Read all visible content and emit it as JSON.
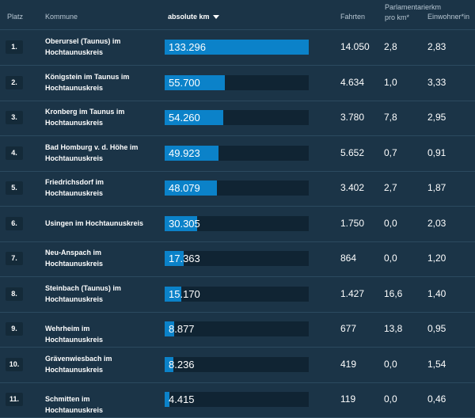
{
  "headers": {
    "platz": "Platz",
    "kommune": "Kommune",
    "absolute_km": "absolute km",
    "fahrten": "Fahrten",
    "parlamentarierkm": "Parlamentarierkm pro km*",
    "einwohner": "Einwohner*in"
  },
  "max_km": 133.296,
  "rows": [
    {
      "platz": "1.",
      "kommune": "Oberursel (Taunus) im Hochtaunuskreis",
      "km": 133.296,
      "km_label": "133.296",
      "fahrten": "14.050",
      "parl": "2,8",
      "einw": "2,83"
    },
    {
      "platz": "2.",
      "kommune": "Königstein im Taunus im Hochtaunuskreis",
      "km": 55.7,
      "km_label": "55.700",
      "fahrten": "4.634",
      "parl": "1,0",
      "einw": "3,33"
    },
    {
      "platz": "3.",
      "kommune": "Kronberg im Taunus im Hochtaunuskreis",
      "km": 54.26,
      "km_label": "54.260",
      "fahrten": "3.780",
      "parl": "7,8",
      "einw": "2,95"
    },
    {
      "platz": "4.",
      "kommune": "Bad Homburg v. d. Höhe im Hochtaunuskreis",
      "km": 49.923,
      "km_label": "49.923",
      "fahrten": "5.652",
      "parl": "0,7",
      "einw": "0,91"
    },
    {
      "platz": "5.",
      "kommune": "Friedrichsdorf im Hochtaunuskreis",
      "km": 48.079,
      "km_label": "48.079",
      "fahrten": "3.402",
      "parl": "2,7",
      "einw": "1,87"
    },
    {
      "platz": "6.",
      "kommune": "Usingen im Hochtaunuskreis",
      "km": 30.305,
      "km_label": "30.305",
      "fahrten": "1.750",
      "parl": "0,0",
      "einw": "2,03"
    },
    {
      "platz": "7.",
      "kommune": "Neu-Anspach im Hochtaunuskreis",
      "km": 17.363,
      "km_label": "17.363",
      "fahrten": "864",
      "parl": "0,0",
      "einw": "1,20"
    },
    {
      "platz": "8.",
      "kommune": "Steinbach (Taunus) im Hochtaunuskreis",
      "km": 15.17,
      "km_label": "15.170",
      "fahrten": "1.427",
      "parl": "16,6",
      "einw": "1,40"
    },
    {
      "platz": "9.",
      "kommune": "Wehrheim im Hochtaunuskreis",
      "km": 8.877,
      "km_label": "8.877",
      "fahrten": "677",
      "parl": "13,8",
      "einw": "0,95"
    },
    {
      "platz": "10.",
      "kommune": "Grävenwiesbach im Hochtaunuskreis",
      "km": 8.236,
      "km_label": "8.236",
      "fahrten": "419",
      "parl": "0,0",
      "einw": "1,54"
    },
    {
      "platz": "11.",
      "kommune": "Schmitten im Hochtaunuskreis",
      "km": 4.415,
      "km_label": "4.415",
      "fahrten": "119",
      "parl": "0,0",
      "einw": "0,46"
    }
  ],
  "colors": {
    "background": "#1b3447",
    "bar": "#0b82c9",
    "bar_track": "#102433"
  }
}
